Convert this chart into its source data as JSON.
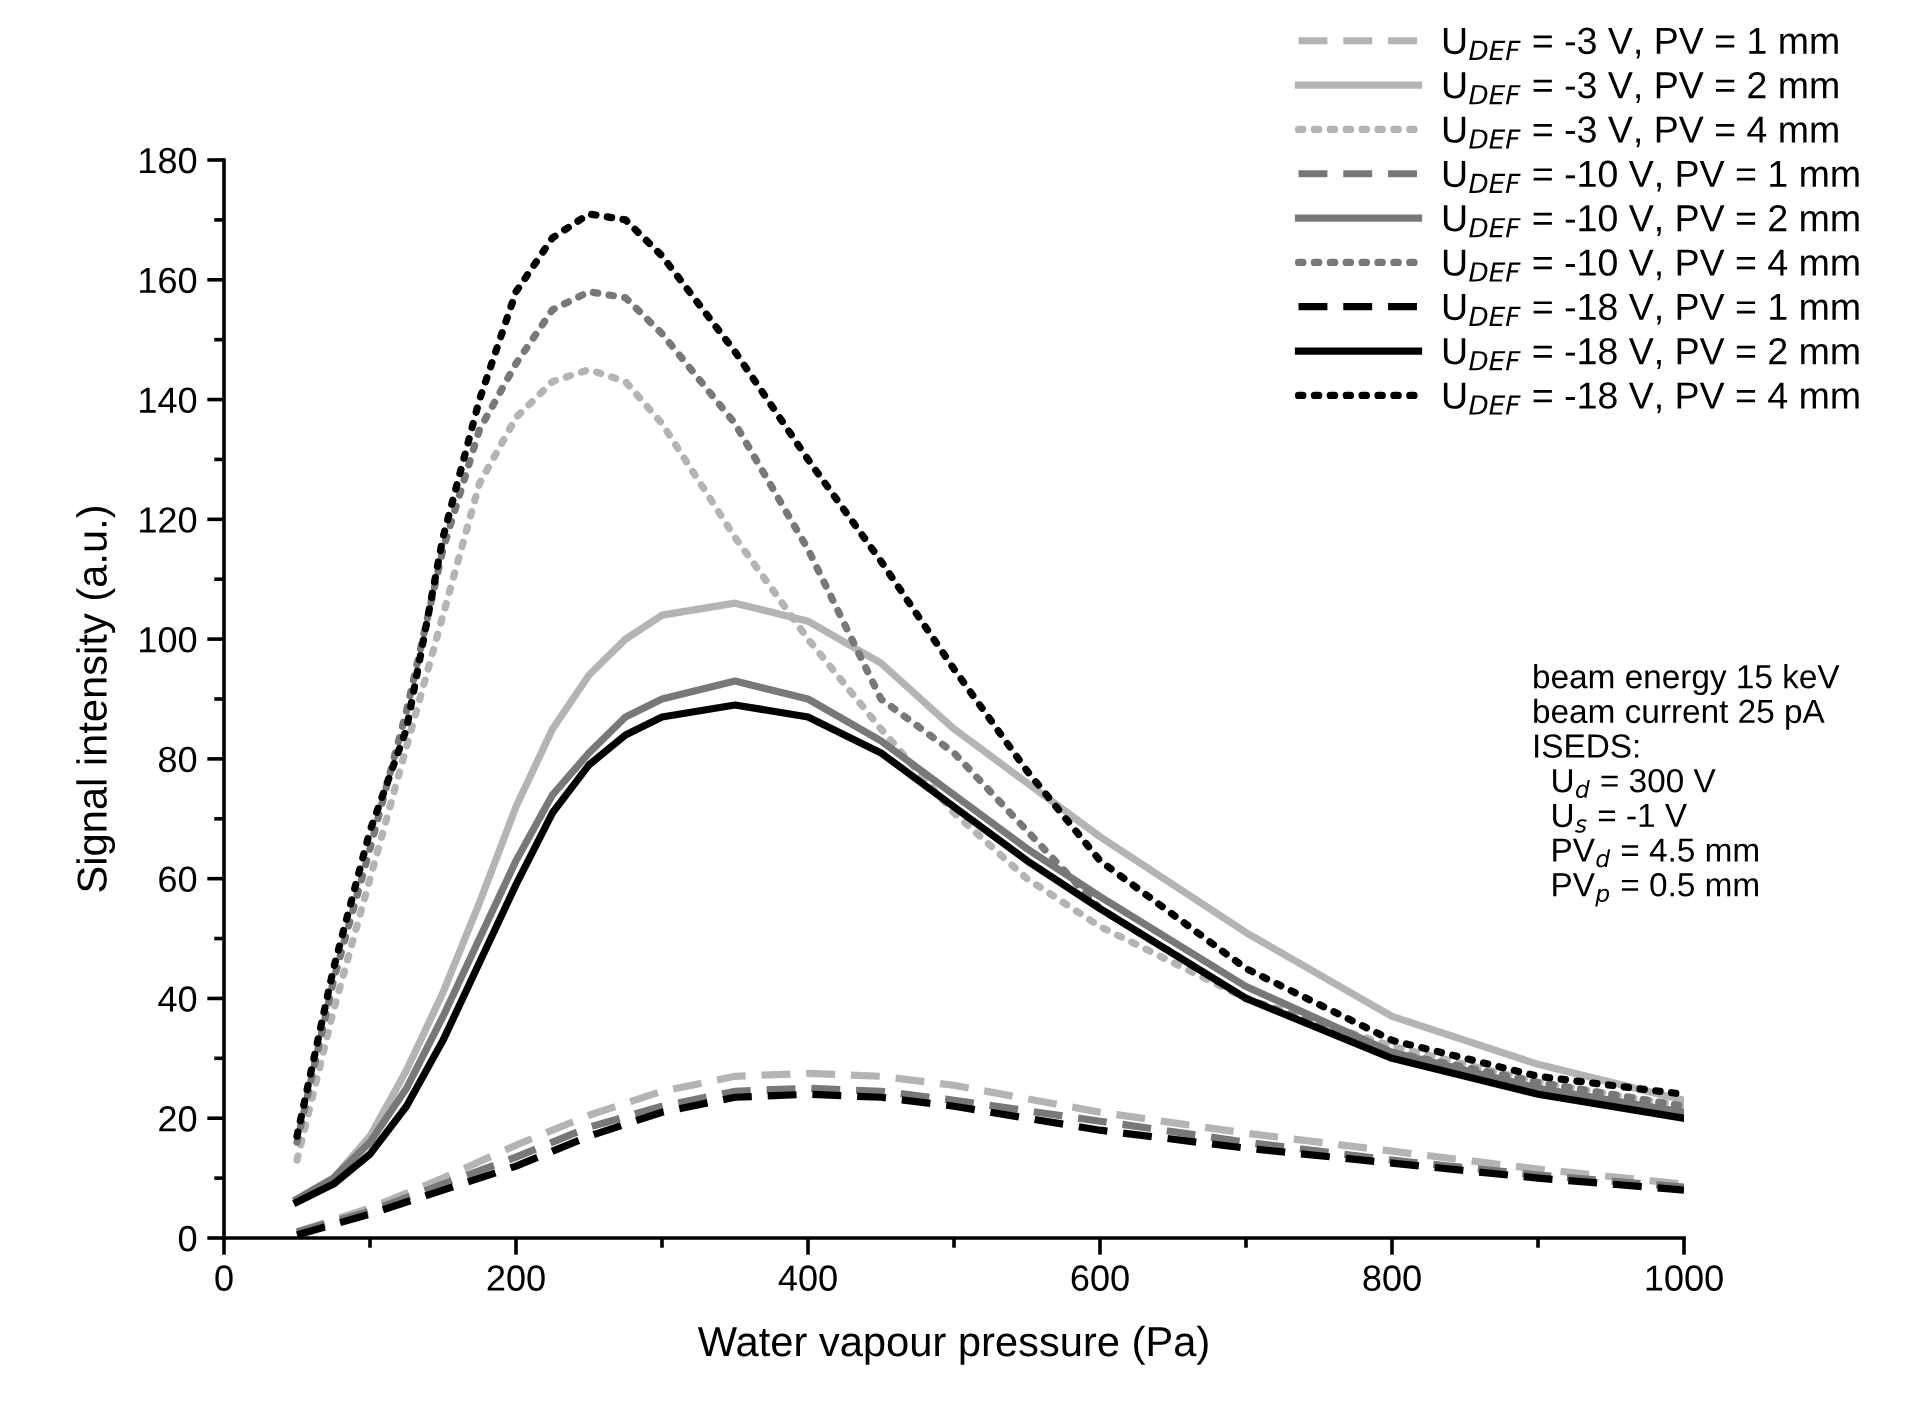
{
  "chart_data": {
    "type": "line",
    "xlabel": "Water vapour pressure (Pa)",
    "ylabel": "Signal intensity (a.u.)",
    "xlim": [
      0,
      1000
    ],
    "ylim": [
      0,
      180
    ],
    "xticks": [
      0,
      200,
      400,
      600,
      800,
      1000
    ],
    "yticks": [
      0,
      20,
      40,
      60,
      80,
      100,
      120,
      140,
      160,
      180
    ],
    "grid": false,
    "legend": "top right",
    "marker": "none",
    "x": [
      50,
      75,
      100,
      125,
      150,
      175,
      200,
      225,
      250,
      275,
      300,
      350,
      400,
      450,
      500,
      550,
      600,
      700,
      800,
      900,
      1000
    ],
    "series": [
      {
        "name": "U$_{DEF}$ = -3 V, PV = 1 mm",
        "color": "#b4b4b4",
        "line_style": "dashed",
        "x": [
          50,
          100,
          150,
          200,
          250,
          300,
          350,
          400,
          450,
          500,
          600,
          700,
          800,
          900,
          1000
        ],
        "values": [
          1,
          5,
          10,
          15.5,
          20.5,
          24.5,
          27,
          27.5,
          27,
          25.5,
          21,
          17.5,
          14.5,
          11.5,
          9
        ]
      },
      {
        "name": "U$_{DEF}$ = -3 V, PV = 2 mm",
        "color": "#b4b4b4",
        "line_style": "solid",
        "values": [
          6.5,
          10,
          17,
          28,
          41,
          56,
          72,
          85,
          94,
          100,
          104,
          106,
          103,
          96,
          85,
          76,
          67,
          51,
          37,
          29,
          23
        ]
      },
      {
        "name": "U$_{DEF}$ = -3 V, PV = 4 mm",
        "color": "#b4b4b4",
        "line_style": "dotted",
        "values": [
          13,
          38,
          60,
          82,
          104,
          126,
          137,
          143,
          145,
          143,
          136,
          117,
          100,
          85,
          71,
          60,
          52,
          40,
          32,
          26,
          22
        ]
      },
      {
        "name": "U$_{DEF}$ = -10 V, PV = 1 mm",
        "color": "#787878",
        "line_style": "dashed",
        "x": [
          50,
          100,
          150,
          200,
          250,
          300,
          350,
          400,
          450,
          500,
          600,
          700,
          800,
          900,
          1000
        ],
        "values": [
          1,
          4.5,
          9,
          13.5,
          18.5,
          22,
          24.5,
          25,
          24.5,
          23,
          19.5,
          16,
          13,
          10.5,
          8.5
        ]
      },
      {
        "name": "U$_{DEF}$ = -10 V, PV = 2 mm",
        "color": "#787878",
        "line_style": "solid",
        "values": [
          6.5,
          10,
          16,
          25,
          37,
          50,
          63,
          74,
          81,
          87,
          90,
          93,
          90,
          83,
          74,
          65,
          57,
          42,
          31,
          25,
          21
        ]
      },
      {
        "name": "U$_{DEF}$ = -10 V, PV = 4 mm",
        "color": "#787878",
        "line_style": "dotted",
        "values": [
          16,
          43,
          65,
          88,
          115,
          135,
          146,
          155,
          158,
          157,
          151,
          136,
          115,
          90,
          81,
          68,
          55,
          40,
          31,
          26,
          22
        ]
      },
      {
        "name": "U$_{DEF}$ = -18 V, PV = 1 mm",
        "color": "#000000",
        "line_style": "dashed",
        "x": [
          50,
          100,
          150,
          200,
          250,
          300,
          350,
          400,
          450,
          500,
          600,
          700,
          800,
          900,
          1000
        ],
        "values": [
          0.5,
          4,
          8,
          12,
          17,
          21,
          23.5,
          24,
          23.5,
          22,
          18,
          15,
          12.5,
          10,
          8
        ]
      },
      {
        "name": "U$_{DEF}$ = -18 V, PV = 2 mm",
        "color": "#000000",
        "line_style": "solid",
        "values": [
          6,
          9,
          14,
          22,
          33,
          46,
          59,
          71,
          79,
          84,
          87,
          89,
          87,
          81,
          72,
          63,
          55,
          40,
          30,
          24,
          20
        ]
      },
      {
        "name": "U$_{DEF}$ = -18 V, PV = 4 mm",
        "color": "#000000",
        "line_style": "dotted",
        "values": [
          17,
          45,
          68,
          85,
          117,
          140,
          158,
          167,
          171,
          170,
          164,
          148,
          130,
          113,
          95,
          78,
          63,
          45,
          33,
          27,
          24
        ]
      }
    ],
    "annotations": [
      "beam energy 15 keV\nbeam current 25 pA\nISEDS:\n  U$_{d}$ = 300 V\n  U$_{s}$ = -1 V\n  PV$_{d}$ = 4.5 mm\n  PV$_{p}$ = 0.5 mm"
    ]
  }
}
